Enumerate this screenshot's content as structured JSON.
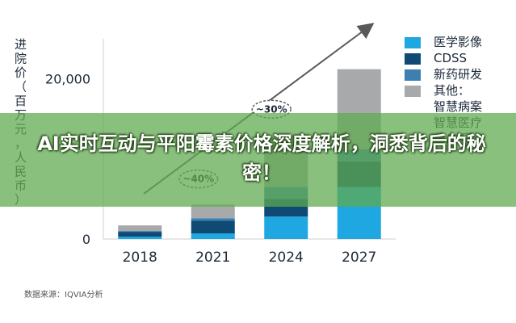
{
  "chart_data": {
    "type": "bar",
    "stacked": true,
    "ylabel": "进院价（百万元，人民币）",
    "categories": [
      "2018",
      "2021",
      "2024",
      "2027"
    ],
    "y_ticks": [
      "0",
      "20,000"
    ],
    "ylim": [
      0,
      25000
    ],
    "series": [
      {
        "name": "医学影像",
        "color": "#1ea7e1",
        "values": [
          300,
          700,
          2800,
          6500
        ]
      },
      {
        "name": "CDSS",
        "color": "#0f4a75",
        "values": [
          600,
          1600,
          2200,
          3200
        ]
      },
      {
        "name": "新药研发",
        "color": "#3d7fb0",
        "values": [
          100,
          300,
          1500,
          1500
        ]
      },
      {
        "name": "其他：\n智慧病案\n智慧医疗\n信息系统",
        "color": "#a8a9ab",
        "values": [
          700,
          1700,
          6500,
          10000
        ]
      }
    ],
    "annotations": [
      {
        "text": "~40%",
        "category": "2021",
        "value": 7500
      },
      {
        "text": "~30%",
        "category": "2024",
        "value": 16200
      }
    ],
    "grid": false,
    "legend": "right"
  },
  "banner": {
    "title": "AI实时互动与平阳霉素价格深度解析，洞悉背后的秘密！"
  },
  "source": "数据来源：IQVIA分析"
}
